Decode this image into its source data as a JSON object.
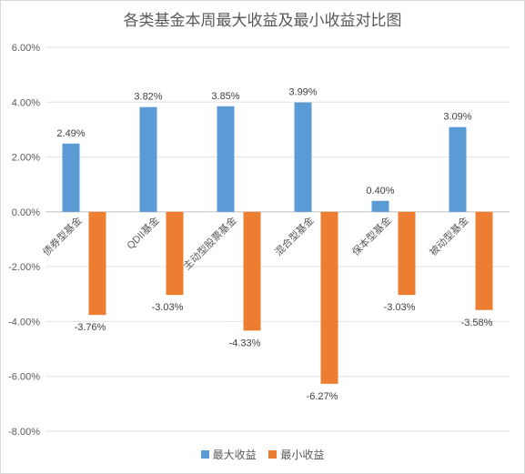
{
  "chart_data": {
    "type": "bar",
    "title": "各类基金本周最大收益及最小收益对比图",
    "categories": [
      "债券型基金",
      "QDII基金",
      "主动型股票基金",
      "混合型基金",
      "保本型基金",
      "被动型基金"
    ],
    "series": [
      {
        "name": "最大收益",
        "color": "#5b9bd5",
        "values": [
          2.49,
          3.82,
          3.85,
          3.99,
          0.4,
          3.09
        ],
        "labels": [
          "2.49%",
          "3.82%",
          "3.85%",
          "3.99%",
          "0.40%",
          "3.09%"
        ]
      },
      {
        "name": "最小收益",
        "color": "#ed7d31",
        "values": [
          -3.76,
          -3.03,
          -4.33,
          -6.27,
          -3.03,
          -3.58
        ],
        "labels": [
          "-3.76%",
          "-3.03%",
          "-4.33%",
          "-6.27%",
          "-3.03%",
          "-3.58%"
        ]
      }
    ],
    "ylim": [
      -8,
      6
    ],
    "yticks": [
      6,
      4,
      2,
      0,
      -2,
      -4,
      -6,
      -8
    ],
    "ytick_labels": [
      "6.00%",
      "4.00%",
      "2.00%",
      "0.00%",
      "-2.00%",
      "-4.00%",
      "-6.00%",
      "-8.00%"
    ],
    "grid": true,
    "legend_position": "bottom"
  }
}
